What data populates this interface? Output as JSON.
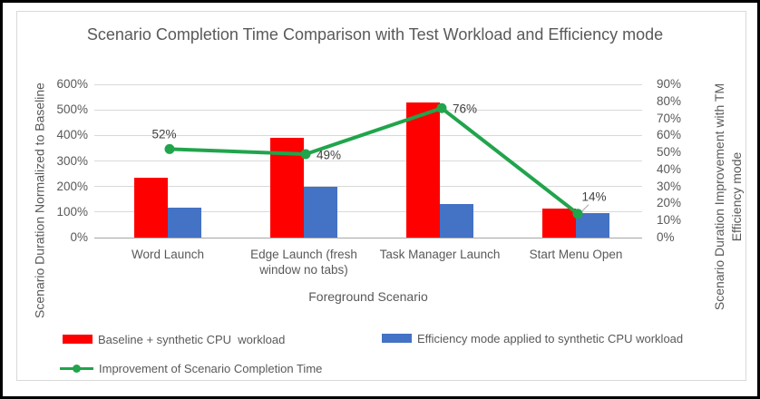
{
  "chart_data": {
    "type": "combo-bar-line",
    "title": "Scenario Completion Time Comparison with Test Workload and Efficiency mode",
    "categories": [
      "Word Launch",
      "Edge Launch (fresh window no tabs)",
      "Task Manager Launch",
      "Start Menu Open"
    ],
    "series": [
      {
        "name": "Baseline + synthetic CPU  workload",
        "type": "bar",
        "axis": "left",
        "color": "#FF0000",
        "values": [
          235,
          390,
          530,
          112
        ]
      },
      {
        "name": "Efficiency mode applied to synthetic CPU workload",
        "type": "bar",
        "axis": "left",
        "color": "#4472C4",
        "values": [
          117,
          200,
          130,
          95
        ]
      },
      {
        "name": "Improvement of Scenario Completion Time",
        "type": "line",
        "axis": "right",
        "color": "#21A44C",
        "values": [
          52,
          49,
          76,
          14
        ],
        "data_labels": [
          "52%",
          "49%",
          "76%",
          "14%"
        ],
        "label_placement": [
          "above",
          "right",
          "right",
          "above-leader"
        ]
      }
    ],
    "x_axis": {
      "title": "Foreground Scenario"
    },
    "left_axis": {
      "title": "Scenario Duration Normalized to Baseline",
      "min": 0,
      "max": 600,
      "tick_step": 100,
      "ticks": [
        "600%",
        "500%",
        "400%",
        "300%",
        "200%",
        "100%",
        "0%"
      ]
    },
    "right_axis": {
      "title_lines": [
        "Scenario Duration Improvement with TM",
        "Efficiency mode"
      ],
      "min": 0,
      "max": 90,
      "tick_step": 10,
      "ticks": [
        "90%",
        "80%",
        "70%",
        "60%",
        "50%",
        "40%",
        "30%",
        "20%",
        "10%",
        "0%"
      ]
    },
    "grid": true,
    "legend_position": "bottom-left"
  },
  "colors": {
    "bar_red": "#FF0000",
    "bar_blue": "#4472C4",
    "line_green": "#21A44C",
    "gridline": "#D9D9D9",
    "axis_line": "#A6A6A6",
    "text_gray": "#595959",
    "data_label": "#404040",
    "frame_border": "#D9D9D9",
    "outer_border": "#000000",
    "leader_line": "#A6A6A6"
  }
}
